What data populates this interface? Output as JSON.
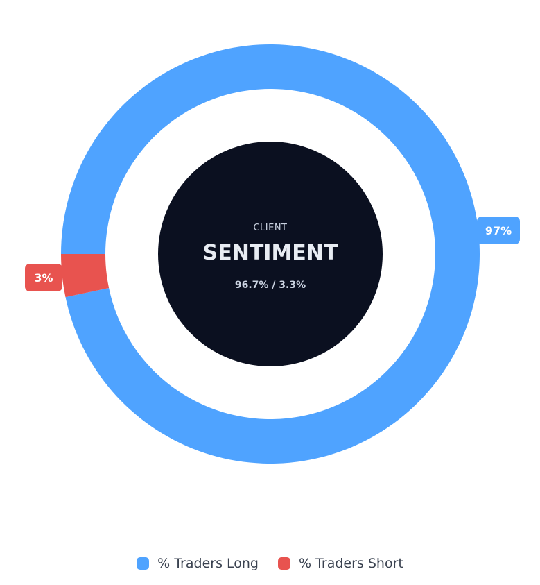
{
  "chart_data": {
    "type": "pie",
    "variant": "donut",
    "categories": [
      "% Traders Long",
      "% Traders Short"
    ],
    "values": [
      96.7,
      3.3
    ],
    "data_labels": [
      "97%",
      "3%"
    ],
    "colors": [
      "#4fa3ff",
      "#e8534f"
    ],
    "legend_position": "bottom",
    "center": {
      "pre_title": "CLIENT",
      "title": "SENTIMENT",
      "subtitle": "96.7% / 3.3%",
      "background": "#0b1020"
    }
  },
  "legend": {
    "items": [
      {
        "label": "% Traders Long",
        "color": "#4fa3ff"
      },
      {
        "label": "% Traders Short",
        "color": "#e8534f"
      }
    ]
  }
}
